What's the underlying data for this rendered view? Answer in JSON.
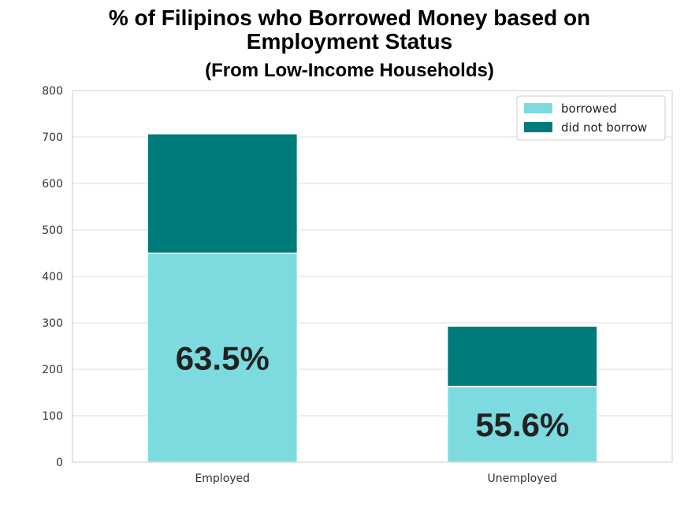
{
  "chart_data": {
    "type": "bar",
    "stacked": true,
    "title_line1": "% of Filipinos who Borrowed Money based on",
    "title_line2": "Employment Status",
    "subtitle": "(From Low-Income Households)",
    "categories": [
      "Employed",
      "Unemployed"
    ],
    "series": [
      {
        "name": "borrowed",
        "color": "#7ddbe0",
        "values": [
          450,
          163
        ]
      },
      {
        "name": "did not borrow",
        "color": "#007b7b",
        "values": [
          257,
          130
        ]
      }
    ],
    "data_labels": [
      "63.5%",
      "55.6%"
    ],
    "yticks": [
      0,
      100,
      200,
      300,
      400,
      500,
      600,
      700,
      800
    ],
    "ylim": [
      0,
      800
    ],
    "grid": true,
    "legend_position": "top-right"
  }
}
